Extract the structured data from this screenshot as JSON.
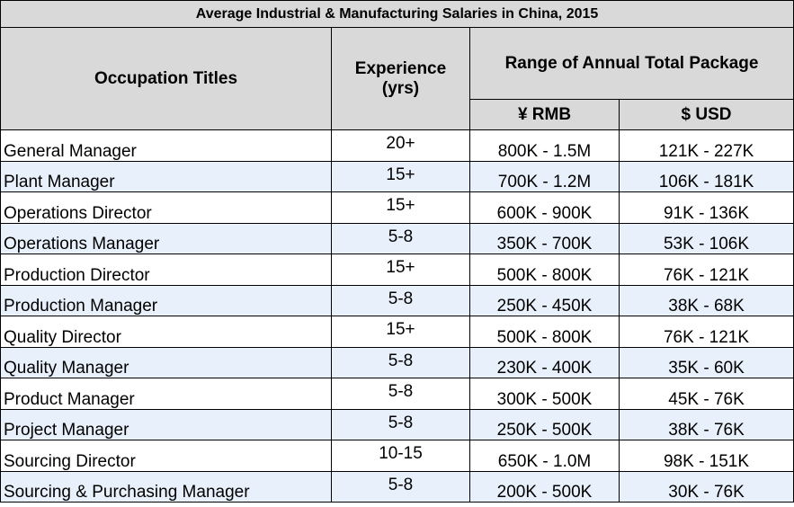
{
  "table": {
    "title": "Average Industrial & Manufacturing Salaries in China, 2015",
    "headers": {
      "occupation": "Occupation Titles",
      "experience_line1": "Experience",
      "experience_line2": "(yrs)",
      "range": "Range of Annual Total Package",
      "rmb": "¥ RMB",
      "usd": "$ USD"
    },
    "rows": [
      {
        "title": "General Manager",
        "experience": "20+",
        "rmb": "800K - 1.5M",
        "usd": "121K - 227K"
      },
      {
        "title": "Plant Manager",
        "experience": "15+",
        "rmb": "700K - 1.2M",
        "usd": "106K - 181K"
      },
      {
        "title": "Operations Director",
        "experience": "15+",
        "rmb": "600K - 900K",
        "usd": "91K - 136K"
      },
      {
        "title": "Operations Manager",
        "experience": "5-8",
        "rmb": "350K - 700K",
        "usd": "53K - 106K"
      },
      {
        "title": "Production Director",
        "experience": "15+",
        "rmb": "500K - 800K",
        "usd": "76K - 121K"
      },
      {
        "title": "Production Manager",
        "experience": "5-8",
        "rmb": "250K - 450K",
        "usd": "38K - 68K"
      },
      {
        "title": "Quality Director",
        "experience": "15+",
        "rmb": "500K - 800K",
        "usd": "76K - 121K"
      },
      {
        "title": "Quality Manager",
        "experience": "5-8",
        "rmb": "230K - 400K",
        "usd": "35K - 60K"
      },
      {
        "title": "Product Manager",
        "experience": "5-8",
        "rmb": "300K - 500K",
        "usd": "45K - 76K"
      },
      {
        "title": "Project Manager",
        "experience": "5-8",
        "rmb": "250K - 500K",
        "usd": "38K - 76K"
      },
      {
        "title": "Sourcing Director",
        "experience": "10-15",
        "rmb": "650K - 1.0M",
        "usd": "98K - 151K"
      },
      {
        "title": "Sourcing & Purchasing Manager",
        "experience": "5-8",
        "rmb": "200K - 500K",
        "usd": "30K - 76K"
      }
    ],
    "colors": {
      "header_bg": "#d9d9d9",
      "alt_row_bg": "#e8f1fb",
      "border": "#000000"
    }
  }
}
